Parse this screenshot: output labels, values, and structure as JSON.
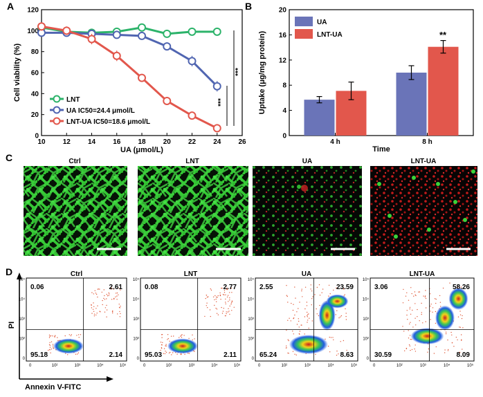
{
  "panels": {
    "A": "A",
    "B": "B",
    "C": "C",
    "D": "D"
  },
  "chart_data": [
    {
      "type": "line",
      "panel": "A",
      "xlabel": "UA (μmol/L)",
      "ylabel": "Cell viability (%)",
      "xlim": [
        10,
        26
      ],
      "ylim": [
        0,
        120
      ],
      "xticks": [
        10,
        12,
        14,
        16,
        18,
        20,
        22,
        24,
        26
      ],
      "yticks": [
        0,
        20,
        40,
        60,
        80,
        100,
        120
      ],
      "x": [
        10,
        12,
        14,
        16,
        18,
        20,
        22,
        24
      ],
      "series": [
        {
          "name": "LNT",
          "label": "LNT",
          "color": "#2cb36a",
          "x": [
            10,
            12,
            14,
            16,
            18,
            20,
            22,
            24
          ],
          "values": [
            103,
            99,
            98,
            99,
            103,
            97,
            99,
            99
          ],
          "errors": [
            2,
            2,
            2,
            2,
            2,
            2,
            2,
            2
          ]
        },
        {
          "name": "UA",
          "label": "UA IC50=24.4 μmol/L",
          "color": "#5065b1",
          "x": [
            10,
            12,
            14,
            16,
            18,
            20,
            22,
            24
          ],
          "values": [
            98,
            98,
            97,
            96,
            95,
            85,
            71,
            47
          ],
          "errors": [
            2,
            2,
            2,
            2,
            2,
            3,
            5,
            5
          ]
        },
        {
          "name": "LNT-UA",
          "label": "LNT-UA IC50=18.6 μmol/L",
          "color": "#e2574c",
          "x": [
            10,
            12,
            14,
            16,
            18,
            20,
            22,
            24
          ],
          "values": [
            104,
            100,
            92,
            76,
            55,
            33,
            19,
            7
          ],
          "errors": [
            4,
            4,
            5,
            5,
            2,
            2,
            2,
            2
          ]
        }
      ],
      "significance": [
        "***",
        "***"
      ]
    },
    {
      "type": "bar",
      "panel": "B",
      "xlabel": "Time",
      "ylabel": "Uptake (μg/mg protein)",
      "categories": [
        "4 h",
        "8 h"
      ],
      "ylim": [
        0,
        20
      ],
      "yticks": [
        0,
        4,
        8,
        12,
        16,
        20
      ],
      "series": [
        {
          "name": "UA",
          "color": "#6a74b8",
          "values": [
            5.7,
            10.0
          ],
          "errors": [
            0.5,
            1.1
          ]
        },
        {
          "name": "LNT-UA",
          "color": "#e2574c",
          "values": [
            7.1,
            14.1
          ],
          "errors": [
            1.4,
            1.0
          ]
        }
      ],
      "significance": "**"
    },
    {
      "type": "scatter",
      "panel": "D",
      "xlabel": "Annexin V-FITC",
      "ylabel": "PI",
      "plots": [
        {
          "title": "Ctrl",
          "quadrants": {
            "ul": "0.06",
            "ur": "2.61",
            "ll": "95.18",
            "lr": "2.14"
          }
        },
        {
          "title": "LNT",
          "quadrants": {
            "ul": "0.08",
            "ur": "2.77",
            "ll": "95.03",
            "lr": "2.11"
          }
        },
        {
          "title": "UA",
          "quadrants": {
            "ul": "2.55",
            "ur": "23.59",
            "ll": "65.24",
            "lr": "8.63"
          }
        },
        {
          "title": "LNT-UA",
          "quadrants": {
            "ul": "3.06",
            "ur": "58.26",
            "ll": "30.59",
            "lr": "8.09"
          }
        }
      ],
      "tick_labels": [
        "0",
        "10²",
        "10³",
        "10⁴",
        "10⁵"
      ]
    }
  ],
  "images": {
    "titles": [
      "Ctrl",
      "LNT",
      "UA",
      "LNT-UA"
    ]
  },
  "colors": {
    "lnt": "#2cb36a",
    "ua": "#5065b1",
    "lntua": "#e2574c",
    "green": "#3ad43a",
    "red": "#d21d1d"
  }
}
